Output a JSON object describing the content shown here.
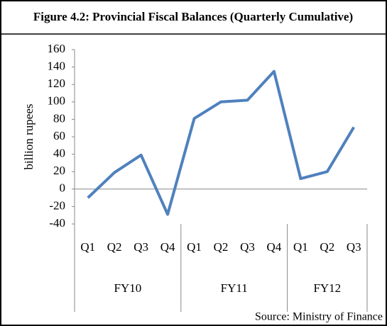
{
  "chart_data": {
    "type": "line",
    "title": "Figure 4.2: Provincial Fiscal Balances (Quarterly Cumulative)",
    "ylabel": "billion rupees",
    "groups": [
      {
        "label": "FY10",
        "categories": [
          "Q1",
          "Q2",
          "Q3",
          "Q4"
        ]
      },
      {
        "label": "FY11",
        "categories": [
          "Q1",
          "Q2",
          "Q3",
          "Q4"
        ]
      },
      {
        "label": "FY12",
        "categories": [
          "Q1",
          "Q2",
          "Q3"
        ]
      }
    ],
    "series": [
      {
        "name": "Provincial fiscal balance",
        "color": "#4f81bd",
        "values": [
          -10,
          19,
          39,
          -29,
          81,
          100,
          102,
          135,
          12,
          20,
          71
        ]
      }
    ],
    "ylim": [
      -40,
      160
    ],
    "yticks": [
      -40,
      -20,
      0,
      20,
      40,
      60,
      80,
      100,
      120,
      140,
      160
    ],
    "source": "Source: Ministry of Finance"
  }
}
